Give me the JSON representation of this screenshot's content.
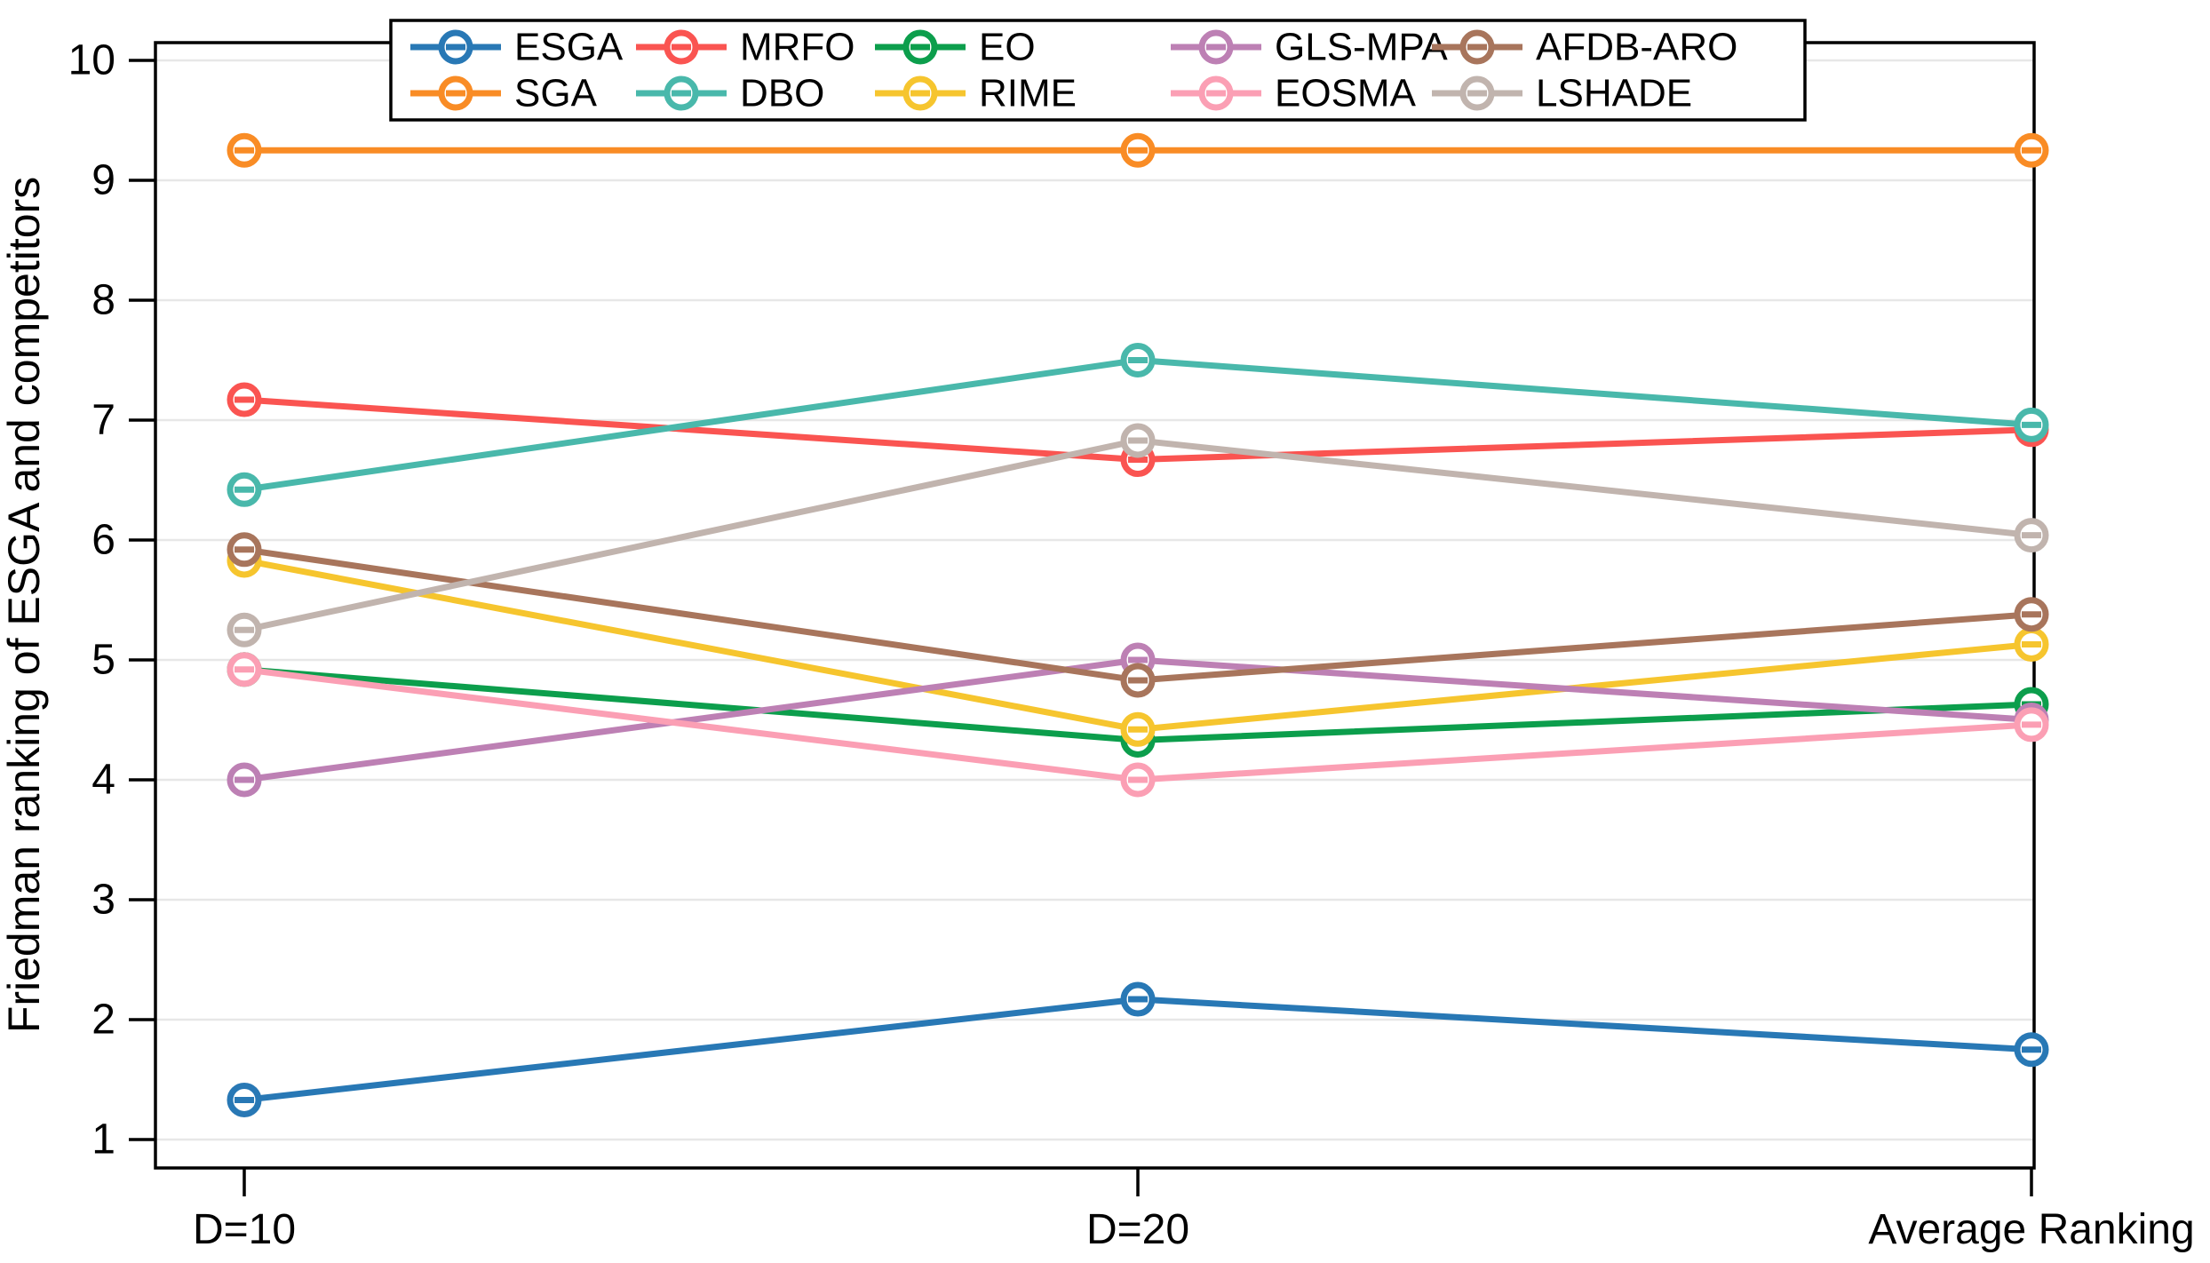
{
  "figure": {
    "background": "#ffffff",
    "axis_color": "#000000",
    "gridline_color": "#e7e7e7"
  },
  "chart_data": {
    "type": "line",
    "title": "",
    "xlabel": "",
    "ylabel": "Friedman ranking of ESGA and competitors",
    "categories": [
      "D=10",
      "D=20",
      "Average Ranking"
    ],
    "yticks": [
      "1",
      "2",
      "3",
      "4",
      "5",
      "6",
      "7",
      "8",
      "9",
      "10"
    ],
    "ylim": [
      1,
      10
    ],
    "grid": "horizontal",
    "legend_position": "top-center",
    "legend_rows": [
      [
        "ESGA",
        "MRFO",
        "EO",
        "GLS-MPA",
        "AFDB-ARO"
      ],
      [
        "SGA",
        "DBO",
        "RIME",
        "EOSMA",
        "LSHADE"
      ]
    ],
    "series": [
      {
        "name": "ESGA",
        "color": "#2878B5",
        "values": [
          1.33,
          2.17,
          1.75
        ]
      },
      {
        "name": "SGA",
        "color": "#F98C25",
        "values": [
          9.25,
          9.25,
          9.25
        ]
      },
      {
        "name": "MRFO",
        "color": "#FA5451",
        "values": [
          7.17,
          6.67,
          6.92
        ]
      },
      {
        "name": "DBO",
        "color": "#49B8AB",
        "values": [
          6.42,
          7.5,
          6.96
        ]
      },
      {
        "name": "EO",
        "color": "#0C9E4C",
        "values": [
          4.92,
          4.33,
          4.63
        ]
      },
      {
        "name": "RIME",
        "color": "#F6C52E",
        "values": [
          5.83,
          4.42,
          5.13
        ]
      },
      {
        "name": "GLS-MPA",
        "color": "#BD80B4",
        "values": [
          4.0,
          5.0,
          4.5
        ]
      },
      {
        "name": "EOSMA",
        "color": "#FB9FB4",
        "values": [
          4.92,
          4.0,
          4.46
        ]
      },
      {
        "name": "AFDB-ARO",
        "color": "#A8755C",
        "values": [
          5.92,
          4.83,
          5.38
        ]
      },
      {
        "name": "LSHADE",
        "color": "#C1B4AE",
        "values": [
          5.25,
          6.83,
          6.04
        ]
      }
    ]
  }
}
